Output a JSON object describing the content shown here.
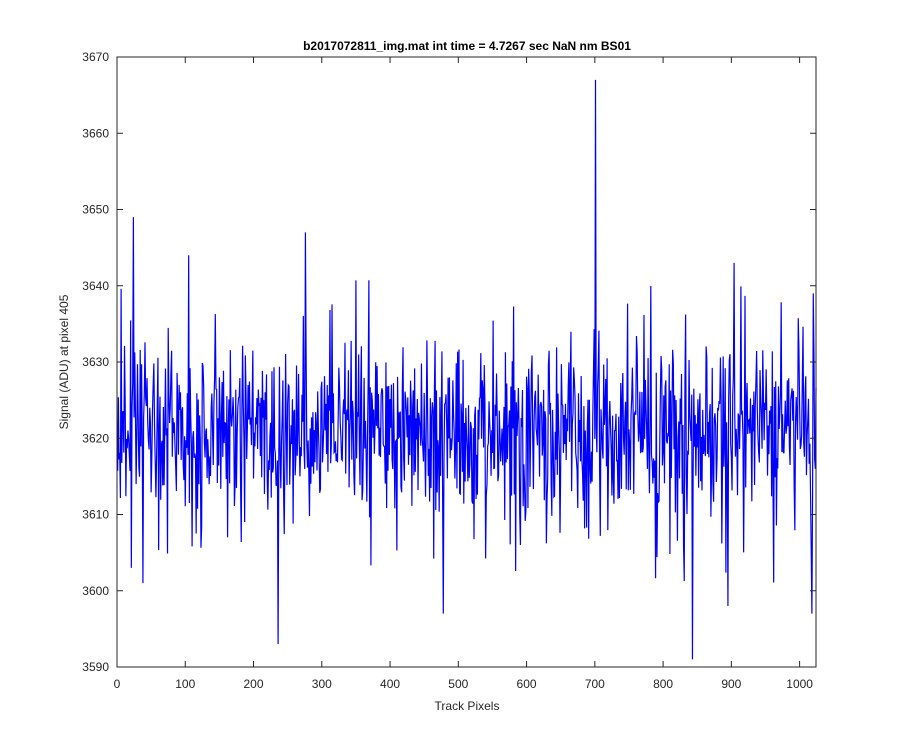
{
  "chart_data": {
    "type": "line",
    "title": "b2017072811_img.mat int time = 4.7267 sec  NaN nm BS01",
    "xlabel": "Track Pixels",
    "ylabel": "Signal (ADU) at pixel 405",
    "xlim": [
      0,
      1024
    ],
    "ylim": [
      3590,
      3670
    ],
    "xticks": [
      0,
      100,
      200,
      300,
      400,
      500,
      600,
      700,
      800,
      900,
      1000
    ],
    "yticks": [
      3590,
      3600,
      3610,
      3620,
      3630,
      3640,
      3650,
      3660,
      3670
    ],
    "grid": false,
    "line_color": "#0000ff",
    "series": [
      {
        "x_start": 1,
        "x_step": 1,
        "y_mean": 3621,
        "y_noise_range": [
          3604,
          3638
        ],
        "values_note_hidden": true,
        "peaks": [
          {
            "x": 24,
            "y": 3649
          },
          {
            "x": 105,
            "y": 3644
          },
          {
            "x": 236,
            "y": 3593
          },
          {
            "x": 276,
            "y": 3647
          },
          {
            "x": 38,
            "y": 3601
          },
          {
            "x": 478,
            "y": 3597
          },
          {
            "x": 701,
            "y": 3667
          },
          {
            "x": 843,
            "y": 3591
          },
          {
            "x": 904,
            "y": 3643
          },
          {
            "x": 895,
            "y": 3598
          },
          {
            "x": 1018,
            "y": 3597
          },
          {
            "x": 1020,
            "y": 3639
          }
        ]
      }
    ]
  }
}
